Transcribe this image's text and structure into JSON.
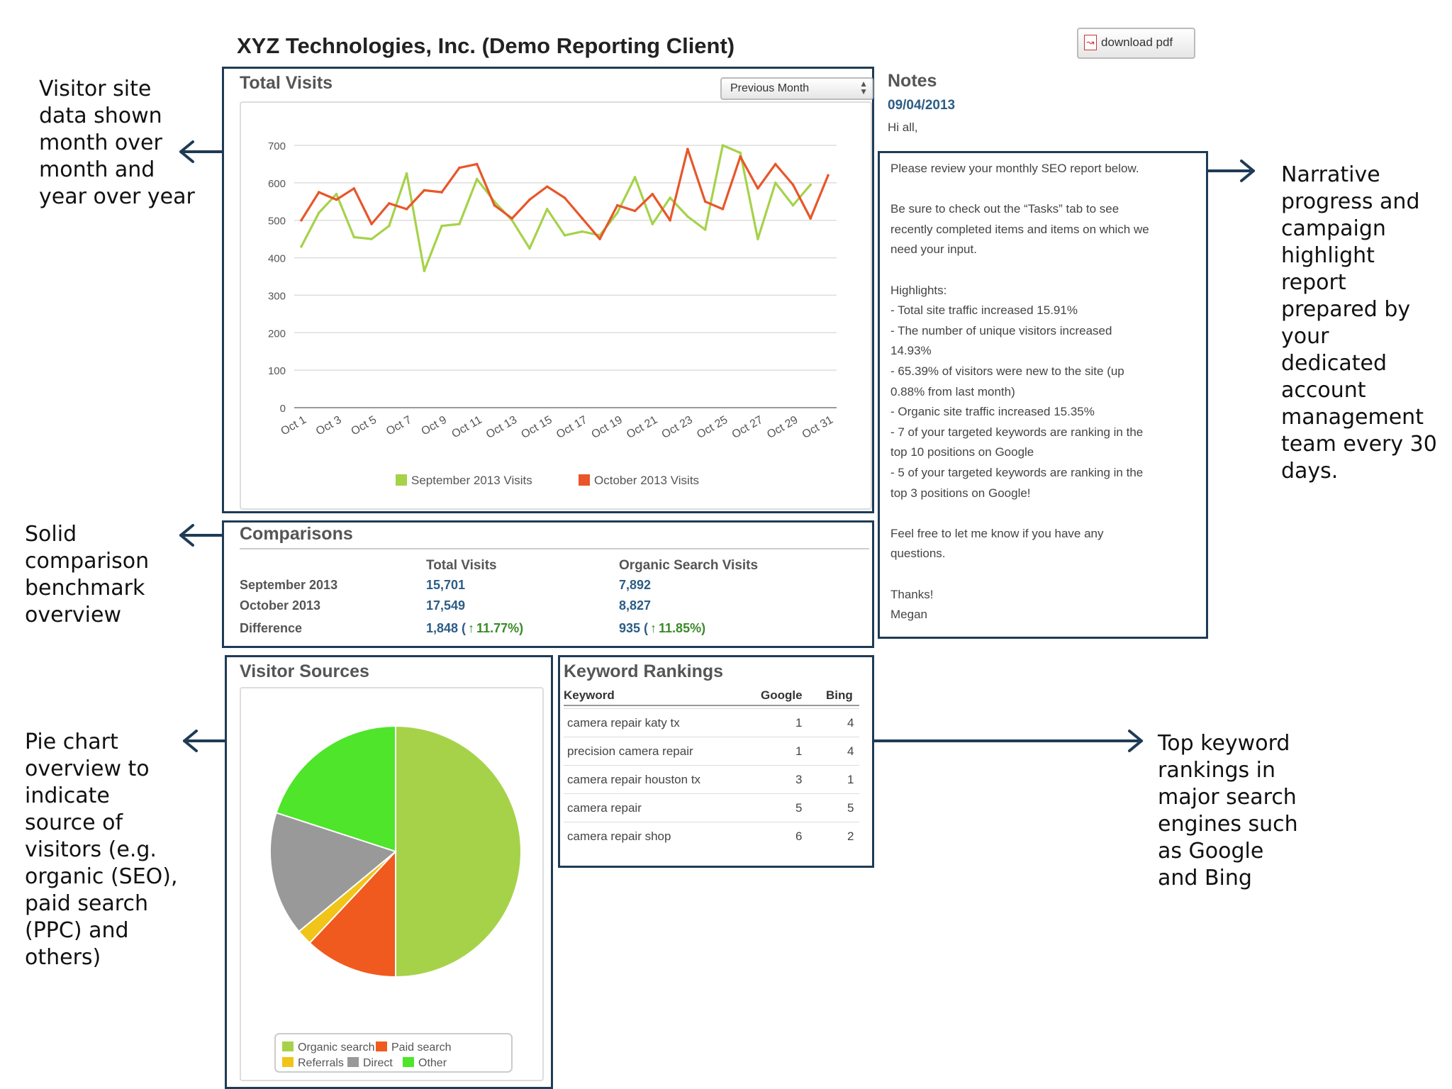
{
  "header": {
    "title": "XYZ Technologies, Inc. (Demo Reporting Client)",
    "download_label": "download pdf"
  },
  "total_visits": {
    "title": "Total Visits",
    "period_select": "Previous Month"
  },
  "notes": {
    "title": "Notes",
    "date": "09/04/2013",
    "greeting": "Hi all,",
    "lines": [
      "Please review your monthly SEO report below.",
      "",
      "Be sure to check out the “Tasks” tab to see",
      "recently completed items and items on which we",
      "need your input.",
      "",
      "Highlights:",
      "- Total site traffic increased 15.91%",
      "- The number of unique visitors increased",
      "14.93%",
      "- 65.39% of visitors were new to the site (up",
      "0.88% from last month)",
      "- Organic site traffic increased 15.35%",
      "- 7 of your targeted keywords are ranking in the",
      "top 10 positions on Google",
      "- 5 of your targeted keywords are ranking in the",
      "top 3 positions on Google!",
      "",
      "Feel free to let me know if you have any",
      "questions.",
      "",
      "Thanks!",
      "Megan"
    ]
  },
  "comparisons": {
    "title": "Comparisons",
    "col1": "Total Visits",
    "col2": "Organic Search Visits",
    "rows": [
      {
        "label": "September 2013",
        "total": "15,701",
        "organic": "7,892"
      },
      {
        "label": "October 2013",
        "total": "17,549",
        "organic": "8,827"
      }
    ],
    "diff": {
      "label": "Difference",
      "total_value": "1,848 (",
      "total_pct": "11.77%)",
      "organic_value": "935 (",
      "organic_pct": "11.85%)"
    }
  },
  "visitor_sources": {
    "title": "Visitor Sources",
    "legend": [
      {
        "label": "Organic search",
        "color": "#a6d24a"
      },
      {
        "label": "Paid search",
        "color": "#f05a1e"
      },
      {
        "label": "Referrals",
        "color": "#f0c419"
      },
      {
        "label": "Direct",
        "color": "#999999"
      },
      {
        "label": "Other",
        "color": "#4ee52a"
      }
    ]
  },
  "keyword_rankings": {
    "title": "Keyword Rankings",
    "headers": {
      "keyword": "Keyword",
      "google": "Google",
      "bing": "Bing"
    },
    "rows": [
      {
        "keyword": "camera repair katy tx",
        "google": "1",
        "bing": "4"
      },
      {
        "keyword": "precision camera repair",
        "google": "1",
        "bing": "4"
      },
      {
        "keyword": "camera repair houston tx",
        "google": "3",
        "bing": "1"
      },
      {
        "keyword": "camera repair",
        "google": "5",
        "bing": "5"
      },
      {
        "keyword": "camera repair shop",
        "google": "6",
        "bing": "2"
      }
    ]
  },
  "annotations": {
    "visitor_data": [
      "Visitor site",
      "data shown",
      "month over",
      "month and",
      "year over year"
    ],
    "comparison": [
      "Solid",
      "comparison",
      "benchmark",
      "overview"
    ],
    "pie": [
      "Pie chart",
      "overview to",
      "indicate",
      "source of",
      "visitors (e.g.",
      "organic (SEO),",
      "paid search",
      "(PPC) and",
      "others)"
    ],
    "narrative": [
      "Narrative",
      "progress and",
      "campaign",
      "highlight",
      "report",
      "prepared by",
      "your",
      "dedicated",
      "account",
      "management",
      "team every 30",
      "days."
    ],
    "keywords": [
      "Top keyword",
      "rankings in",
      "major search",
      "engines such",
      "as Google",
      "and Bing"
    ]
  },
  "chart_data": [
    {
      "type": "line",
      "title": "Total Visits",
      "x": [
        "Oct 1",
        "Oct 2",
        "Oct 3",
        "Oct 4",
        "Oct 5",
        "Oct 6",
        "Oct 7",
        "Oct 8",
        "Oct 9",
        "Oct 10",
        "Oct 11",
        "Oct 12",
        "Oct 13",
        "Oct 14",
        "Oct 15",
        "Oct 16",
        "Oct 17",
        "Oct 18",
        "Oct 19",
        "Oct 20",
        "Oct 21",
        "Oct 22",
        "Oct 23",
        "Oct 24",
        "Oct 25",
        "Oct 26",
        "Oct 27",
        "Oct 28",
        "Oct 29",
        "Oct 30",
        "Oct 31"
      ],
      "x_tick_labels": [
        "Oct 1",
        "Oct 3",
        "Oct 5",
        "Oct 7",
        "Oct 9",
        "Oct 11",
        "Oct 13",
        "Oct 15",
        "Oct 17",
        "Oct 19",
        "Oct 21",
        "Oct 23",
        "Oct 25",
        "Oct 27",
        "Oct 29",
        "Oct 31"
      ],
      "ylim": [
        0,
        700
      ],
      "yticks": [
        0,
        100,
        200,
        300,
        400,
        500,
        600,
        700
      ],
      "grid": true,
      "legend_position": "bottom",
      "series": [
        {
          "name": "September 2013 Visits",
          "color": "#a6d24a",
          "values": [
            430,
            520,
            570,
            455,
            450,
            485,
            625,
            365,
            485,
            490,
            610,
            550,
            500,
            425,
            530,
            460,
            470,
            460,
            520,
            615,
            490,
            560,
            510,
            475,
            700,
            680,
            450,
            600,
            540,
            595,
            null
          ]
        },
        {
          "name": "October 2013 Visits",
          "color": "#e8562a",
          "values": [
            500,
            575,
            555,
            585,
            490,
            545,
            530,
            580,
            575,
            640,
            650,
            540,
            505,
            555,
            590,
            560,
            505,
            450,
            540,
            525,
            570,
            500,
            690,
            550,
            530,
            670,
            585,
            650,
            595,
            505,
            620
          ]
        }
      ]
    },
    {
      "type": "pie",
      "title": "Visitor Sources",
      "categories": [
        "Organic search",
        "Paid search",
        "Referrals",
        "Direct",
        "Other"
      ],
      "values": [
        50.0,
        12.0,
        2.0,
        16.0,
        20.0
      ],
      "colors": [
        "#a6d24a",
        "#f05a1e",
        "#f0c419",
        "#999999",
        "#4ee52a"
      ],
      "legend_position": "bottom"
    }
  ]
}
